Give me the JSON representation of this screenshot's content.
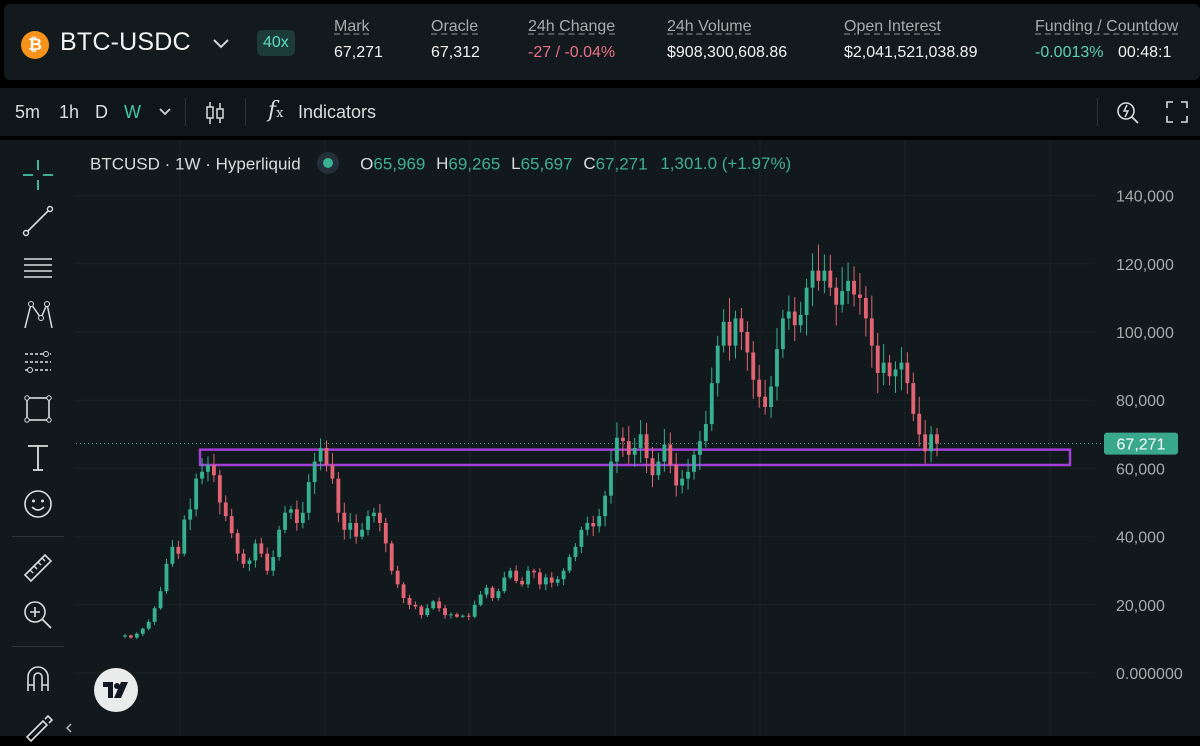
{
  "header": {
    "coin_icon_glyph": "₿",
    "market": "BTC-USDC",
    "leverage": "40x",
    "stats": [
      {
        "label": "Mark",
        "value": "67,271",
        "tone": "plain"
      },
      {
        "label": "Oracle",
        "value": "67,312",
        "tone": "plain"
      },
      {
        "label": "24h Change",
        "value": "-27 / -0.04%",
        "tone": "neg"
      },
      {
        "label": "24h Volume",
        "value": "$908,300,608.86",
        "tone": "plain"
      },
      {
        "label": "Open Interest",
        "value": "$2,041,521,038.89",
        "tone": "plain"
      },
      {
        "label": "Funding / Countdow",
        "value": "-0.0013%",
        "value2": "00:48:1",
        "tone": "pos"
      }
    ]
  },
  "toolbar": {
    "intervals": [
      "5m",
      "1h",
      "D",
      "W"
    ],
    "active_interval": "W",
    "indicators_label": "Indicators",
    "fx_glyph": "f"
  },
  "legend": {
    "symbol": "BTCUSD · 1W · Hyperliquid",
    "o_label": "O",
    "o": "65,969",
    "h_label": "H",
    "h": "69,265",
    "l_label": "L",
    "l": "65,697",
    "c_label": "C",
    "c": "67,271",
    "change": "1,301.0 (+1.97%)"
  },
  "price_axis": {
    "ticks": [
      "140,000",
      "120,000",
      "100,000",
      "80,000",
      "60,000",
      "40,000",
      "20,000",
      "0.000000"
    ],
    "last_price_label": "67,271"
  },
  "chart_data": {
    "type": "candlestick",
    "last_price": 67271,
    "ylim": [
      0,
      140000
    ],
    "support_zone": [
      61000,
      65500
    ],
    "series": [
      {
        "values": [
          11000,
          10400,
          11500,
          13000,
          15000,
          19000,
          24000,
          32000,
          37000,
          35000,
          45000,
          48000,
          57000,
          59000,
          61000,
          58000,
          50000,
          46000,
          41000,
          35000,
          32000,
          33000,
          38000,
          35000,
          30000,
          34000,
          42000,
          47000,
          48000,
          44000,
          47000,
          56000,
          62000,
          66000,
          61000,
          57000,
          47000,
          42000,
          44000,
          40000,
          42000,
          46000,
          47000,
          44000,
          38000,
          30000,
          26000,
          22000,
          20000,
          19500,
          17000,
          19000,
          21000,
          19000,
          17000,
          17200,
          16500,
          16800,
          16500,
          20000,
          23000,
          25000,
          22000,
          24000,
          28000,
          30000,
          27000,
          26000,
          30000,
          29500,
          26000,
          28000,
          26500,
          27500,
          30000,
          34000,
          37000,
          42000,
          44000,
          43000,
          46000,
          52000,
          62000,
          69000,
          68000,
          64000,
          66000,
          70000,
          63000,
          58000,
          62000,
          67000,
          61000,
          55000,
          57000,
          59000,
          64000,
          68000,
          73000,
          85000,
          96000,
          103000,
          96000,
          104000,
          100000,
          94000,
          86000,
          81000,
          78000,
          84000,
          95000,
          104000,
          106000,
          102000,
          105000,
          113000,
          118000,
          115000,
          118000,
          113000,
          108000,
          112000,
          115000,
          111000,
          110000,
          104000,
          96000,
          88000,
          91000,
          87000,
          89000,
          91000,
          85000,
          76000,
          70000,
          65000,
          70000,
          67271
        ]
      }
    ]
  }
}
